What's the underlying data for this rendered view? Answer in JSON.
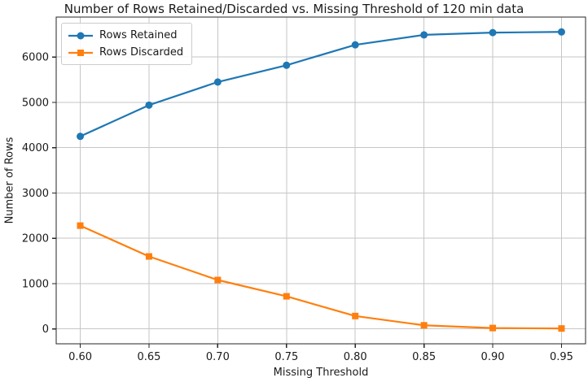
{
  "chart_data": {
    "type": "line",
    "title": "Number of Rows Retained/Discarded vs. Missing Threshold of 120 min data",
    "xlabel": "Missing Threshold",
    "ylabel": "Number of Rows",
    "x": [
      0.6,
      0.65,
      0.7,
      0.75,
      0.8,
      0.85,
      0.9,
      0.95
    ],
    "xtick_labels": [
      "0.60",
      "0.65",
      "0.70",
      "0.75",
      "0.80",
      "0.85",
      "0.90",
      "0.95"
    ],
    "yticks": [
      0,
      1000,
      2000,
      3000,
      4000,
      5000,
      6000
    ],
    "xlim": [
      0.5825,
      0.9675
    ],
    "ylim": [
      -328,
      6883
    ],
    "grid": true,
    "legend_position": "upper-left",
    "series": [
      {
        "name": "Rows Retained",
        "marker": "circle",
        "color": "#1f77b4",
        "values": [
          4250,
          4940,
          5450,
          5820,
          6270,
          6490,
          6540,
          6555
        ]
      },
      {
        "name": "Rows Discarded",
        "marker": "square",
        "color": "#ff7f0e",
        "values": [
          2280,
          1600,
          1080,
          720,
          285,
          80,
          20,
          10
        ]
      }
    ],
    "colors": {
      "grid": "#c6c6c6",
      "spine": "#262626",
      "text": "#1a1a1a",
      "legend_border": "#cccccc",
      "background": "#ffffff"
    }
  }
}
